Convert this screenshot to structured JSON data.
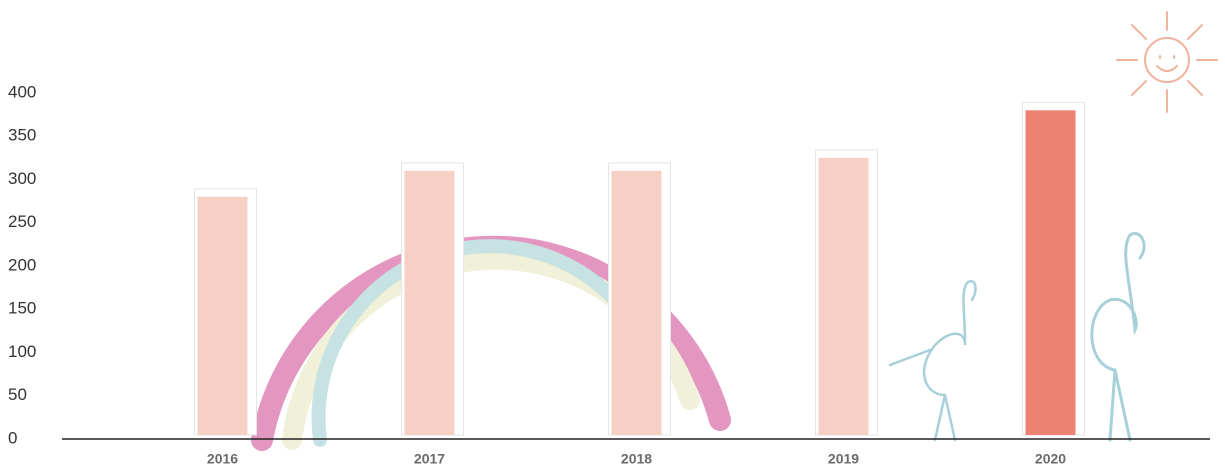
{
  "chart_data": {
    "type": "bar",
    "categories": [
      "2016",
      "2017",
      "2018",
      "2019",
      "2020"
    ],
    "values": [
      280,
      310,
      310,
      325,
      380
    ],
    "colors": [
      "#f6d0c4",
      "#f6d0c4",
      "#f6d0c4",
      "#f6d0c4",
      "#ee8270"
    ],
    "ylim": [
      0,
      400
    ],
    "yticks": [
      0,
      50,
      100,
      150,
      200,
      250,
      300,
      350,
      400
    ],
    "grid": false
  }
}
